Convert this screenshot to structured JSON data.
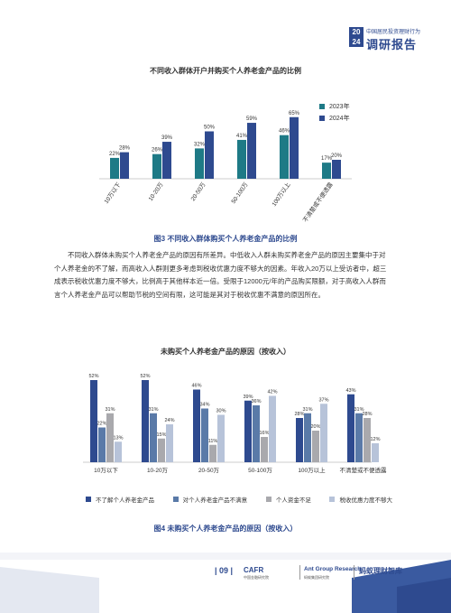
{
  "header": {
    "badge": "20 24",
    "subtitle": "中国居民投资理财行为",
    "title": "调研报告"
  },
  "chart1": {
    "title": "不同收入群体开户并购买个人养老金产品的比例",
    "caption": "图3  不同收入群体购买个人养老金产品的比例",
    "legend": [
      "2023年",
      "2024年"
    ],
    "colors": [
      "#1e7a86",
      "#2e4a8f"
    ]
  },
  "paragraph": {
    "line1": "不同收入群体未购买个人养老金产品的原因有所差异。中低收入人群未购买养老金产品的原因主要集中于对",
    "line2": "个人养老金的不了解，而高收入人群则更多考虑到税收优惠力度不够大的因素。年收入20万以上受访者中，超三",
    "line3": "成表示税收优惠力度不够大，比例高于其他样本近一倍。受限于12000元/年的产品购买限额，对于高收入人群而",
    "line4": "言个人养老金产品可以帮助节税的空间有限，这可能是其对于税收优惠不满意的原因所在。"
  },
  "chart2": {
    "title": "未购买个人养老金产品的原因（按收入）",
    "caption": "图4  未购买个人养老金产品的原因（按收入）",
    "legend": [
      "不了解个人养老金产品",
      "对个人养老金产品不满意",
      "个人资金不足",
      "税收优惠力度不够大"
    ],
    "colors": [
      "#2e4a8f",
      "#5a7aa8",
      "#a9a9ad",
      "#b7c3d9"
    ]
  },
  "footer": {
    "page": "| 09 |",
    "logo1": "CAFR",
    "logo1_sub": "中国金融研究院",
    "logo2": "Ant Group Research",
    "logo2_sub": "蚂蚁集团研究院",
    "logo3": "蚂蚁理财智库"
  },
  "chart_data": [
    {
      "type": "bar",
      "title": "不同收入群体开户并购买个人养老金产品的比例",
      "categories": [
        "10万以下",
        "10-20万",
        "20-50万",
        "50-100万",
        "100万以上",
        "不清楚或不便透露"
      ],
      "series": [
        {
          "name": "2023年",
          "values": [
            22,
            26,
            32,
            41,
            46,
            17
          ]
        },
        {
          "name": "2024年",
          "values": [
            28,
            39,
            50,
            59,
            65,
            20
          ]
        }
      ],
      "ylim": [
        0,
        70
      ],
      "grid": false,
      "legend": "right"
    },
    {
      "type": "bar",
      "title": "未购买个人养老金产品的原因（按收入）",
      "categories": [
        "10万以下",
        "10-20万",
        "20-50万",
        "50-100万",
        "100万以上",
        "不清楚或不便透露"
      ],
      "series": [
        {
          "name": "不了解个人养老金产品",
          "values": [
            52,
            52,
            46,
            39,
            28,
            43
          ]
        },
        {
          "name": "对个人养老金产品不满意",
          "values": [
            22,
            31,
            34,
            36,
            31,
            31
          ]
        },
        {
          "name": "个人资金不足",
          "values": [
            31,
            15,
            11,
            16,
            20,
            28
          ]
        },
        {
          "name": "税收优惠力度不够大",
          "values": [
            13,
            24,
            30,
            42,
            37,
            12
          ]
        }
      ],
      "ylim": [
        0,
        55
      ],
      "grid": false,
      "legend": "bottom"
    }
  ]
}
